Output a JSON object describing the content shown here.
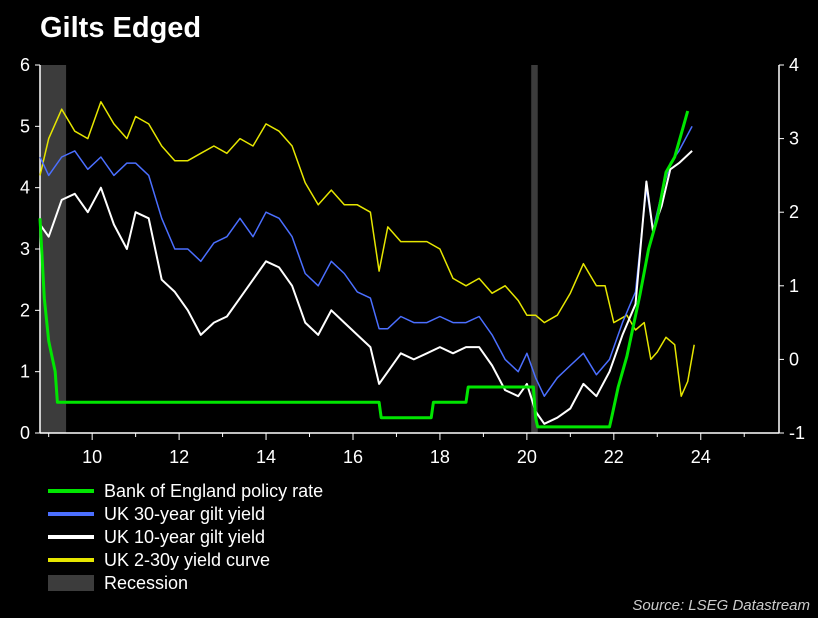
{
  "title": "Gilts Edged",
  "source": "Source: LSEG Datastream",
  "colors": {
    "policy": "#00e600",
    "yield30": "#4b6fff",
    "yield10": "#ffffff",
    "curve": "#e6e600",
    "recession": "#3c3c3c",
    "axis": "#ffffff",
    "background": "#000000"
  },
  "legend": [
    {
      "label": "Bank of England policy rate",
      "color": "#00e600",
      "kind": "line"
    },
    {
      "label": "UK 30-year gilt yield",
      "color": "#4b6fff",
      "kind": "line"
    },
    {
      "label": "UK 10-year gilt yield",
      "color": "#ffffff",
      "kind": "line"
    },
    {
      "label": "UK 2-30y yield curve",
      "color": "#e6e600",
      "kind": "line"
    },
    {
      "label": "Recession",
      "color": "#3c3c3c",
      "kind": "box"
    }
  ],
  "chart_data": {
    "type": "line",
    "title": "Gilts Edged",
    "xlim": [
      2008.8,
      2025.8
    ],
    "ylim_left": [
      0,
      6
    ],
    "ylim_right": [
      -1,
      4
    ],
    "x_ticks": [
      10,
      12,
      14,
      16,
      18,
      20,
      22,
      24
    ],
    "y_ticks_left": [
      0,
      1,
      2,
      3,
      4,
      5,
      6
    ],
    "y_ticks_right": [
      -1,
      0,
      1,
      2,
      3,
      4
    ],
    "recessions": [
      [
        2008.8,
        2009.4
      ],
      [
        2020.1,
        2020.25
      ]
    ],
    "series": [
      {
        "name": "Bank of England policy rate",
        "axis": "left",
        "color": "#00e600",
        "x": [
          2008.8,
          2008.9,
          2009.0,
          2009.15,
          2009.2,
          2016.6,
          2016.65,
          2017.8,
          2017.85,
          2018.6,
          2018.65,
          2020.15,
          2020.2,
          2020.25,
          2021.9,
          2021.95,
          2022.1,
          2022.3,
          2022.6,
          2022.8,
          2023.0,
          2023.2,
          2023.4,
          2023.6,
          2023.7
        ],
        "y": [
          3.5,
          2.2,
          1.5,
          1.0,
          0.5,
          0.5,
          0.25,
          0.25,
          0.5,
          0.5,
          0.75,
          0.75,
          0.25,
          0.1,
          0.1,
          0.25,
          0.75,
          1.25,
          2.25,
          3.0,
          3.5,
          4.25,
          4.5,
          5.0,
          5.25
        ]
      },
      {
        "name": "UK 30-year gilt yield",
        "axis": "left",
        "color": "#4b6fff",
        "x": [
          2008.8,
          2009.0,
          2009.3,
          2009.6,
          2009.9,
          2010.2,
          2010.5,
          2010.8,
          2011.0,
          2011.3,
          2011.6,
          2011.9,
          2012.2,
          2012.5,
          2012.8,
          2013.1,
          2013.4,
          2013.7,
          2014.0,
          2014.3,
          2014.6,
          2014.9,
          2015.2,
          2015.5,
          2015.8,
          2016.1,
          2016.4,
          2016.6,
          2016.8,
          2017.1,
          2017.4,
          2017.7,
          2018.0,
          2018.3,
          2018.6,
          2018.9,
          2019.2,
          2019.5,
          2019.8,
          2020.0,
          2020.2,
          2020.4,
          2020.7,
          2021.0,
          2021.3,
          2021.6,
          2021.9,
          2022.2,
          2022.5,
          2022.75,
          2022.9,
          2023.1,
          2023.3,
          2023.5,
          2023.8
        ],
        "y": [
          4.5,
          4.2,
          4.5,
          4.6,
          4.3,
          4.5,
          4.2,
          4.4,
          4.4,
          4.2,
          3.5,
          3.0,
          3.0,
          2.8,
          3.1,
          3.2,
          3.5,
          3.2,
          3.6,
          3.5,
          3.2,
          2.6,
          2.4,
          2.8,
          2.6,
          2.3,
          2.2,
          1.7,
          1.7,
          1.9,
          1.8,
          1.8,
          1.9,
          1.8,
          1.8,
          1.9,
          1.6,
          1.2,
          1.0,
          1.3,
          0.9,
          0.6,
          0.9,
          1.1,
          1.3,
          0.95,
          1.2,
          1.8,
          2.3,
          4.0,
          3.3,
          3.9,
          4.4,
          4.6,
          5.0
        ]
      },
      {
        "name": "UK 10-year gilt yield",
        "axis": "left",
        "color": "#ffffff",
        "x": [
          2008.8,
          2009.0,
          2009.3,
          2009.6,
          2009.9,
          2010.2,
          2010.5,
          2010.8,
          2011.0,
          2011.3,
          2011.6,
          2011.9,
          2012.2,
          2012.5,
          2012.8,
          2013.1,
          2013.4,
          2013.7,
          2014.0,
          2014.3,
          2014.6,
          2014.9,
          2015.2,
          2015.5,
          2015.8,
          2016.1,
          2016.4,
          2016.6,
          2016.8,
          2017.1,
          2017.4,
          2017.7,
          2018.0,
          2018.3,
          2018.6,
          2018.9,
          2019.2,
          2019.5,
          2019.8,
          2020.0,
          2020.2,
          2020.4,
          2020.7,
          2021.0,
          2021.3,
          2021.6,
          2021.9,
          2022.2,
          2022.5,
          2022.75,
          2022.9,
          2023.1,
          2023.3,
          2023.5,
          2023.8
        ],
        "y": [
          3.4,
          3.2,
          3.8,
          3.9,
          3.6,
          4.0,
          3.4,
          3.0,
          3.6,
          3.5,
          2.5,
          2.3,
          2.0,
          1.6,
          1.8,
          1.9,
          2.2,
          2.5,
          2.8,
          2.7,
          2.4,
          1.8,
          1.6,
          2.0,
          1.8,
          1.6,
          1.4,
          0.8,
          1.0,
          1.3,
          1.2,
          1.3,
          1.4,
          1.3,
          1.4,
          1.4,
          1.1,
          0.7,
          0.6,
          0.8,
          0.35,
          0.15,
          0.25,
          0.4,
          0.8,
          0.6,
          1.0,
          1.6,
          2.1,
          4.1,
          3.3,
          3.7,
          4.3,
          4.4,
          4.6
        ]
      },
      {
        "name": "UK 2-30y yield curve",
        "axis": "right",
        "color": "#e6e600",
        "x": [
          2008.8,
          2009.0,
          2009.3,
          2009.6,
          2009.9,
          2010.2,
          2010.5,
          2010.8,
          2011.0,
          2011.3,
          2011.6,
          2011.9,
          2012.2,
          2012.5,
          2012.8,
          2013.1,
          2013.4,
          2013.7,
          2014.0,
          2014.3,
          2014.6,
          2014.9,
          2015.2,
          2015.5,
          2015.8,
          2016.1,
          2016.4,
          2016.6,
          2016.8,
          2017.1,
          2017.4,
          2017.7,
          2018.0,
          2018.3,
          2018.6,
          2018.9,
          2019.2,
          2019.5,
          2019.8,
          2020.0,
          2020.2,
          2020.4,
          2020.7,
          2021.0,
          2021.3,
          2021.6,
          2021.8,
          2022.0,
          2022.3,
          2022.5,
          2022.7,
          2022.85,
          2023.0,
          2023.2,
          2023.4,
          2023.55,
          2023.7,
          2023.85
        ],
        "y": [
          2.5,
          3.0,
          3.4,
          3.1,
          3.0,
          3.5,
          3.2,
          3.0,
          3.3,
          3.2,
          2.9,
          2.7,
          2.7,
          2.8,
          2.9,
          2.8,
          3.0,
          2.9,
          3.2,
          3.1,
          2.9,
          2.4,
          2.1,
          2.3,
          2.1,
          2.1,
          2.0,
          1.2,
          1.8,
          1.6,
          1.6,
          1.6,
          1.5,
          1.1,
          1.0,
          1.1,
          0.9,
          1.0,
          0.8,
          0.6,
          0.6,
          0.5,
          0.6,
          0.9,
          1.3,
          1.0,
          1.0,
          0.5,
          0.6,
          0.4,
          0.5,
          0.0,
          0.1,
          0.3,
          0.2,
          -0.5,
          -0.3,
          0.2
        ]
      }
    ]
  }
}
